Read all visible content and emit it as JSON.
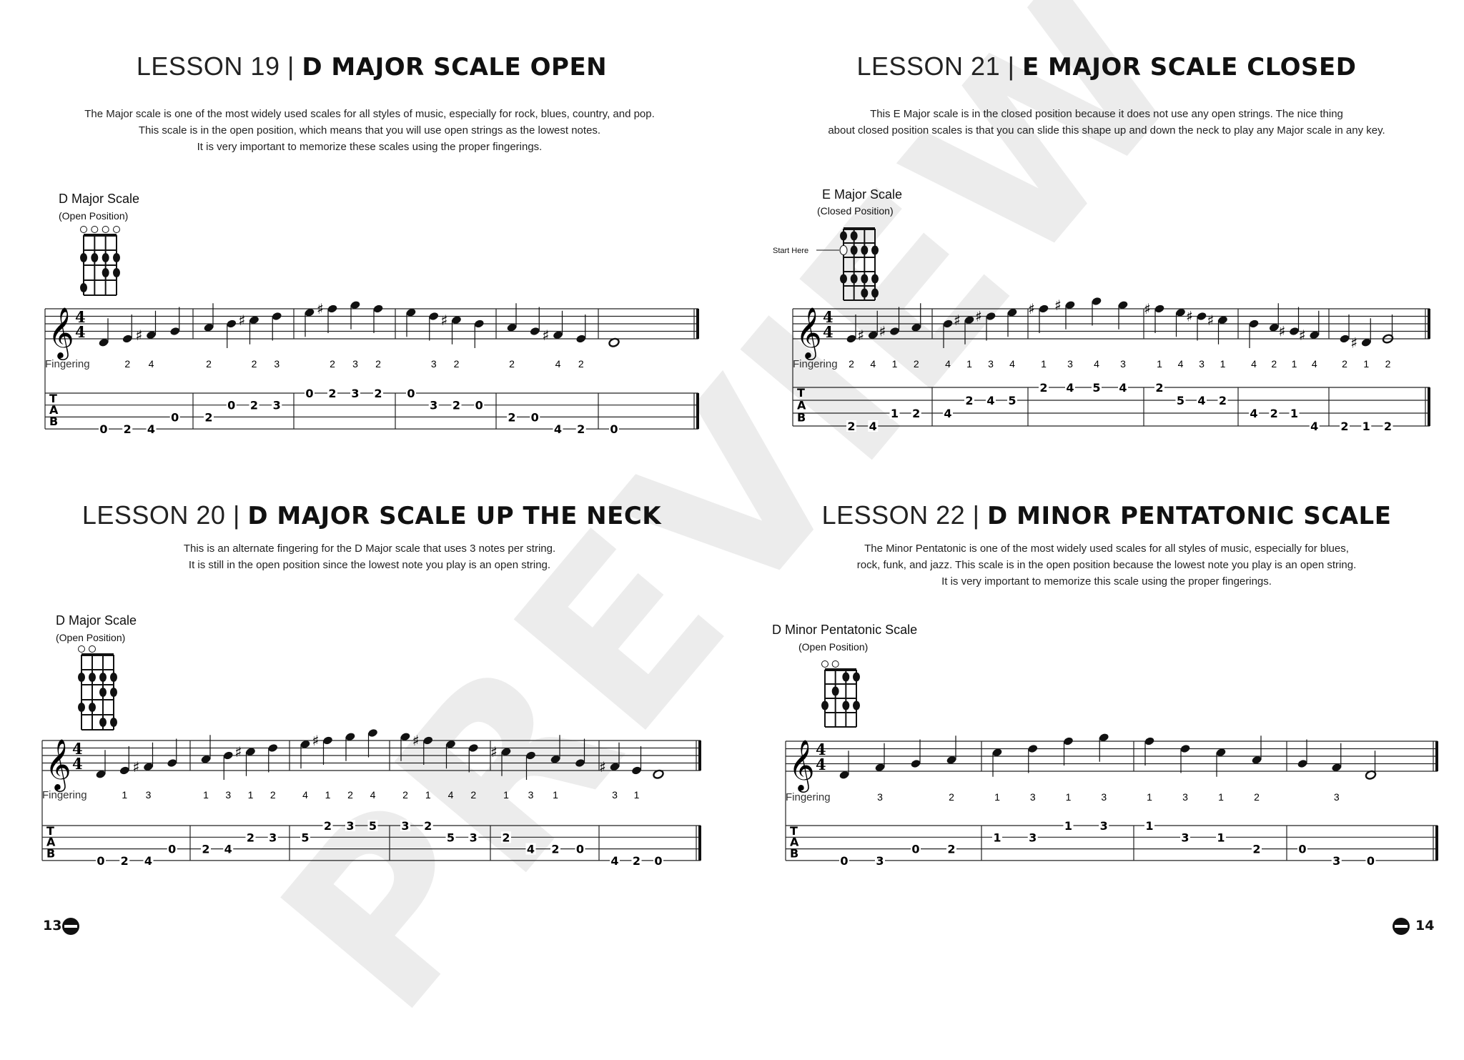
{
  "watermark": "PREVIEW",
  "lessons": [
    {
      "lesson_label": "LESSON 19 |",
      "title": "D MAJOR SCALE OPEN",
      "paragraph": [
        "The Major scale is one of the most widely used scales for all styles of music, especially for rock, blues, country, and pop.",
        "This scale is in the open position, which means that you will use open strings as the lowest notes.",
        "It is very important to memorize these scales using the proper fingerings."
      ],
      "scale_name": "D Major Scale",
      "position": "(Open Position)",
      "fingering_label": "Fingering",
      "tab_letters": [
        "T",
        "A",
        "B"
      ],
      "time_signature": [
        "4",
        "4"
      ],
      "diagram": {
        "rows": 4,
        "open": [
          0,
          1,
          2,
          3
        ],
        "dots": [
          [
            2,
            0
          ],
          [
            2,
            1
          ],
          [
            2,
            2
          ],
          [
            2,
            3
          ],
          [
            3,
            2
          ],
          [
            3,
            3
          ],
          [
            4,
            0
          ]
        ]
      },
      "measures": [
        [
          {
            "n": "D4",
            "f": "",
            "s": 3,
            "t": "0"
          },
          {
            "n": "E4",
            "f": "2",
            "s": 3,
            "t": "2"
          },
          {
            "n": "F#4",
            "f": "4",
            "s": 3,
            "t": "4"
          },
          {
            "n": "G4",
            "f": "",
            "s": 2,
            "t": "0"
          }
        ],
        [
          {
            "n": "A4",
            "f": "2",
            "s": 2,
            "t": "2"
          },
          {
            "n": "B4",
            "f": "",
            "s": 1,
            "t": "0"
          },
          {
            "n": "C#5",
            "f": "2",
            "s": 1,
            "t": "2"
          },
          {
            "n": "D5",
            "f": "3",
            "s": 1,
            "t": "3"
          }
        ],
        [
          {
            "n": "E5",
            "f": "",
            "s": 0,
            "t": "0"
          },
          {
            "n": "F#5",
            "f": "2",
            "s": 0,
            "t": "2"
          },
          {
            "n": "G5",
            "f": "3",
            "s": 0,
            "t": "3"
          },
          {
            "n": "F#5",
            "f": "2",
            "s": 0,
            "t": "2"
          }
        ],
        [
          {
            "n": "E5",
            "f": "",
            "s": 0,
            "t": "0"
          },
          {
            "n": "D5",
            "f": "3",
            "s": 1,
            "t": "3"
          },
          {
            "n": "C#5",
            "f": "2",
            "s": 1,
            "t": "2"
          },
          {
            "n": "B4",
            "f": "",
            "s": 1,
            "t": "0"
          }
        ],
        [
          {
            "n": "A4",
            "f": "2",
            "s": 2,
            "t": "2"
          },
          {
            "n": "G4",
            "f": "",
            "s": 2,
            "t": "0"
          },
          {
            "n": "F#4",
            "f": "4",
            "s": 3,
            "t": "4"
          },
          {
            "n": "E4",
            "f": "2",
            "s": 3,
            "t": "2"
          }
        ],
        [
          {
            "n": "D4",
            "f": "",
            "s": 3,
            "t": "0",
            "d": "w"
          }
        ]
      ]
    },
    {
      "lesson_label": "LESSON 21 |",
      "title": "E MAJOR SCALE CLOSED",
      "paragraph": [
        "This E Major scale is in the closed position because it does not use any open strings. The nice thing",
        "about closed position scales is that you can slide this shape up and down the neck to play any Major scale in any key."
      ],
      "scale_name": "E Major Scale",
      "position": "(Closed Position)",
      "start_label": "Start Here",
      "fingering_label": "Fingering",
      "tab_letters": [
        "T",
        "A",
        "B"
      ],
      "time_signature": [
        "4",
        "4"
      ],
      "diagram": {
        "rows": 5,
        "open": [],
        "start": [
          2,
          0
        ],
        "dots": [
          [
            1,
            0
          ],
          [
            1,
            1
          ],
          [
            2,
            1
          ],
          [
            2,
            2
          ],
          [
            2,
            3
          ],
          [
            4,
            0
          ],
          [
            4,
            1
          ],
          [
            4,
            2
          ],
          [
            4,
            3
          ],
          [
            5,
            2
          ],
          [
            5,
            3
          ]
        ]
      },
      "measures": [
        [
          {
            "n": "E4",
            "f": "2",
            "s": 3,
            "t": "2"
          },
          {
            "n": "F#4",
            "f": "4",
            "s": 3,
            "t": "4"
          },
          {
            "n": "G#4",
            "f": "1",
            "s": 2,
            "t": "1"
          },
          {
            "n": "A4",
            "f": "2",
            "s": 2,
            "t": "2"
          }
        ],
        [
          {
            "n": "B4",
            "f": "4",
            "s": 2,
            "t": "4"
          },
          {
            "n": "C#5",
            "f": "1",
            "s": 1,
            "t": "2"
          },
          {
            "n": "D#5",
            "f": "3",
            "s": 1,
            "t": "4"
          },
          {
            "n": "E5",
            "f": "4",
            "s": 1,
            "t": "5"
          }
        ],
        [
          {
            "n": "F#5",
            "f": "1",
            "s": 0,
            "t": "2"
          },
          {
            "n": "G#5",
            "f": "3",
            "s": 0,
            "t": "4"
          },
          {
            "n": "A5",
            "f": "4",
            "s": 0,
            "t": "5"
          },
          {
            "n": "G#5",
            "f": "3",
            "s": 0,
            "t": "4"
          }
        ],
        [
          {
            "n": "F#5",
            "f": "1",
            "s": 0,
            "t": "2"
          },
          {
            "n": "E5",
            "f": "4",
            "s": 1,
            "t": "5"
          },
          {
            "n": "D#5",
            "f": "3",
            "s": 1,
            "t": "4"
          },
          {
            "n": "C#5",
            "f": "1",
            "s": 1,
            "t": "2"
          }
        ],
        [
          {
            "n": "B4",
            "f": "4",
            "s": 2,
            "t": "4"
          },
          {
            "n": "A4",
            "f": "2",
            "s": 2,
            "t": "2"
          },
          {
            "n": "G#4",
            "f": "1",
            "s": 2,
            "t": "1"
          },
          {
            "n": "F#4",
            "f": "4",
            "s": 3,
            "t": "4"
          }
        ],
        [
          {
            "n": "E4",
            "f": "2",
            "s": 3,
            "t": "2"
          },
          {
            "n": "D#4",
            "f": "1",
            "s": 3,
            "t": "1"
          },
          {
            "n": "E4",
            "f": "2",
            "s": 3,
            "t": "2",
            "d": "h"
          }
        ]
      ]
    },
    {
      "lesson_label": "LESSON 20 |",
      "title": "D MAJOR SCALE UP THE NECK",
      "paragraph": [
        "This is an alternate fingering for the D Major scale that uses 3 notes per string.",
        "It is still in the open position since the lowest note you play is an open string."
      ],
      "scale_name": "D Major Scale",
      "position": "(Open Position)",
      "fingering_label": "Fingering",
      "tab_letters": [
        "T",
        "A",
        "B"
      ],
      "time_signature": [
        "4",
        "4"
      ],
      "diagram": {
        "rows": 5,
        "open": [
          0,
          1
        ],
        "dots": [
          [
            2,
            0
          ],
          [
            2,
            1
          ],
          [
            2,
            2
          ],
          [
            2,
            3
          ],
          [
            3,
            2
          ],
          [
            3,
            3
          ],
          [
            4,
            0
          ],
          [
            4,
            1
          ],
          [
            5,
            2
          ],
          [
            5,
            3
          ]
        ]
      },
      "measures": [
        [
          {
            "n": "D4",
            "f": "",
            "s": 3,
            "t": "0"
          },
          {
            "n": "E4",
            "f": "1",
            "s": 3,
            "t": "2"
          },
          {
            "n": "F#4",
            "f": "3",
            "s": 3,
            "t": "4"
          },
          {
            "n": "G4",
            "f": "",
            "s": 2,
            "t": "0"
          }
        ],
        [
          {
            "n": "A4",
            "f": "1",
            "s": 2,
            "t": "2"
          },
          {
            "n": "B4",
            "f": "3",
            "s": 2,
            "t": "4"
          },
          {
            "n": "C#5",
            "f": "1",
            "s": 1,
            "t": "2"
          },
          {
            "n": "D5",
            "f": "2",
            "s": 1,
            "t": "3"
          }
        ],
        [
          {
            "n": "E5",
            "f": "4",
            "s": 1,
            "t": "5"
          },
          {
            "n": "F#5",
            "f": "1",
            "s": 0,
            "t": "2"
          },
          {
            "n": "G5",
            "f": "2",
            "s": 0,
            "t": "3"
          },
          {
            "n": "A5",
            "f": "4",
            "s": 0,
            "t": "5"
          }
        ],
        [
          {
            "n": "G5",
            "f": "2",
            "s": 0,
            "t": "3"
          },
          {
            "n": "F#5",
            "f": "1",
            "s": 0,
            "t": "2"
          },
          {
            "n": "E5",
            "f": "4",
            "s": 1,
            "t": "5"
          },
          {
            "n": "D5",
            "f": "2",
            "s": 1,
            "t": "3"
          }
        ],
        [
          {
            "n": "C#5",
            "f": "1",
            "s": 1,
            "t": "2"
          },
          {
            "n": "B4",
            "f": "3",
            "s": 2,
            "t": "4"
          },
          {
            "n": "A4",
            "f": "1",
            "s": 2,
            "t": "2"
          },
          {
            "n": "G4",
            "f": "",
            "s": 2,
            "t": "0"
          }
        ],
        [
          {
            "n": "F#4",
            "f": "3",
            "s": 3,
            "t": "4"
          },
          {
            "n": "E4",
            "f": "1",
            "s": 3,
            "t": "2"
          },
          {
            "n": "D4",
            "f": "",
            "s": 3,
            "t": "0",
            "d": "w"
          }
        ]
      ]
    },
    {
      "lesson_label": "LESSON 22 |",
      "title": "D MINOR PENTATONIC SCALE",
      "paragraph": [
        "The Minor Pentatonic is one of the most widely used scales for all styles of music, especially for blues,",
        "rock, funk, and jazz. This scale is in the open position because the lowest note you play is an open string.",
        "It is very important to memorize this scale using the proper fingerings."
      ],
      "scale_name": "D Minor Pentatonic Scale",
      "position": "(Open Position)",
      "fingering_label": "Fingering",
      "tab_letters": [
        "T",
        "A",
        "B"
      ],
      "time_signature": [
        "4",
        "4"
      ],
      "diagram": {
        "rows": 4,
        "open": [
          0,
          1
        ],
        "dots": [
          [
            1,
            2
          ],
          [
            1,
            3
          ],
          [
            2,
            1
          ],
          [
            3,
            0
          ],
          [
            3,
            2
          ],
          [
            3,
            3
          ]
        ]
      },
      "measures": [
        [
          {
            "n": "D4",
            "f": "",
            "s": 3,
            "t": "0"
          },
          {
            "n": "F4",
            "f": "3",
            "s": 3,
            "t": "3"
          },
          {
            "n": "G4",
            "f": "",
            "s": 2,
            "t": "0"
          },
          {
            "n": "A4",
            "f": "2",
            "s": 2,
            "t": "2"
          }
        ],
        [
          {
            "n": "C5",
            "f": "1",
            "s": 1,
            "t": "1"
          },
          {
            "n": "D5",
            "f": "3",
            "s": 1,
            "t": "3"
          },
          {
            "n": "F5",
            "f": "1",
            "s": 0,
            "t": "1"
          },
          {
            "n": "G5",
            "f": "3",
            "s": 0,
            "t": "3"
          }
        ],
        [
          {
            "n": "F5",
            "f": "1",
            "s": 0,
            "t": "1"
          },
          {
            "n": "D5",
            "f": "3",
            "s": 1,
            "t": "3"
          },
          {
            "n": "C5",
            "f": "1",
            "s": 1,
            "t": "1"
          },
          {
            "n": "A4",
            "f": "2",
            "s": 2,
            "t": "2"
          }
        ],
        [
          {
            "n": "G4",
            "f": "",
            "s": 2,
            "t": "0"
          },
          {
            "n": "F4",
            "f": "3",
            "s": 3,
            "t": "3"
          },
          {
            "n": "D4",
            "f": "",
            "s": 3,
            "t": "0",
            "d": "h"
          }
        ]
      ]
    }
  ],
  "footer": {
    "left_page": "13",
    "right_page": "14",
    "page_icon": "bass-logo-icon"
  }
}
